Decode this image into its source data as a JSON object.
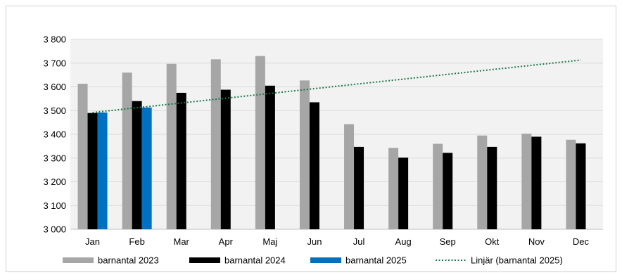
{
  "chart_data": {
    "type": "bar",
    "title": "",
    "xlabel": "",
    "ylabel": "",
    "categories": [
      "Jan",
      "Feb",
      "Mar",
      "Apr",
      "Maj",
      "Jun",
      "Jul",
      "Aug",
      "Sep",
      "Okt",
      "Nov",
      "Dec"
    ],
    "ylim": [
      3000,
      3800
    ],
    "yticks": [
      3000,
      3100,
      3200,
      3300,
      3400,
      3500,
      3600,
      3700,
      3800
    ],
    "ytick_labels": [
      "3 000",
      "3 100",
      "3 200",
      "3 300",
      "3 400",
      "3 500",
      "3 600",
      "3 700",
      "3 800"
    ],
    "grid": true,
    "legend_position": "bottom",
    "series": [
      {
        "name": "barnantal 2023",
        "color": "#a6a6a6",
        "values": [
          3613,
          3660,
          3697,
          3716,
          3730,
          3627,
          3443,
          3343,
          3360,
          3395,
          3403,
          3377
        ]
      },
      {
        "name": "barnantal 2024",
        "color": "#000000",
        "values": [
          3490,
          3540,
          3575,
          3588,
          3605,
          3535,
          3347,
          3302,
          3322,
          3347,
          3390,
          3362
        ]
      },
      {
        "name": "barnantal 2025",
        "color": "#0070c0",
        "values": [
          3492,
          3513,
          null,
          null,
          null,
          null,
          null,
          null,
          null,
          null,
          null,
          null
        ]
      }
    ],
    "trendline": {
      "name": "Linjär (barnantal 2025)",
      "color": "#1a7a4a",
      "style": "dotted",
      "start": {
        "category": "Jan",
        "value": 3492
      },
      "end": {
        "category": "Dec",
        "value": 3713
      }
    },
    "plot_background": "#f2f2f2"
  }
}
